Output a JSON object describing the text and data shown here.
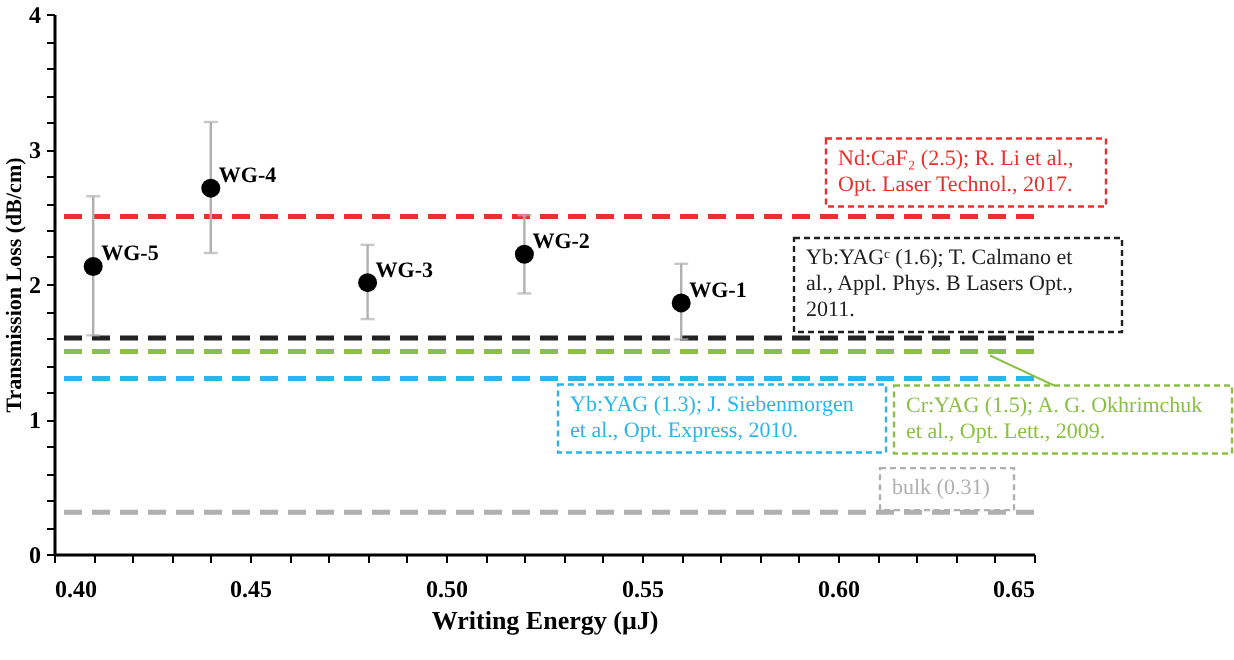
{
  "chart_data": {
    "type": "scatter",
    "xlabel": "Writing Energy (μJ)",
    "ylabel": "Transmission Loss (dB/cm)",
    "x": [
      0.41,
      0.44,
      0.48,
      0.52,
      0.56
    ],
    "series": [
      {
        "color": "#000000",
        "values": [
          2.13,
          2.71,
          2.01,
          2.22,
          1.86
        ],
        "errors": [
          [
            1.62,
            2.65
          ],
          [
            2.23,
            3.2
          ],
          [
            1.74,
            2.29
          ],
          [
            1.93,
            2.51
          ],
          [
            1.59,
            2.15
          ]
        ]
      }
    ],
    "marker": "circle",
    "xlim": [
      0.4,
      0.65
    ],
    "ylim": [
      0,
      4
    ],
    "xticks": [
      {
        "value": 0.4,
        "label": "0.40"
      },
      {
        "value": 0.41,
        "label": null
      },
      {
        "value": 0.42,
        "label": null
      },
      {
        "value": 0.43,
        "label": null
      },
      {
        "value": 0.44,
        "label": null
      },
      {
        "value": 0.45,
        "label": "0.45"
      },
      {
        "value": 0.46,
        "label": null
      },
      {
        "value": 0.47,
        "label": null
      },
      {
        "value": 0.48,
        "label": null
      },
      {
        "value": 0.49,
        "label": null
      },
      {
        "value": 0.5,
        "label": "0.50"
      },
      {
        "value": 0.51,
        "label": null
      },
      {
        "value": 0.52,
        "label": null
      },
      {
        "value": 0.53,
        "label": null
      },
      {
        "value": 0.54,
        "label": null
      },
      {
        "value": 0.55,
        "label": "0.55"
      },
      {
        "value": 0.56,
        "label": null
      },
      {
        "value": 0.57,
        "label": null
      },
      {
        "value": 0.58,
        "label": null
      },
      {
        "value": 0.59,
        "label": null
      },
      {
        "value": 0.6,
        "label": "0.60"
      },
      {
        "value": 0.61,
        "label": null
      },
      {
        "value": 0.62,
        "label": null
      },
      {
        "value": 0.63,
        "label": null
      },
      {
        "value": 0.64,
        "label": null
      },
      {
        "value": 0.65,
        "label": "0.65"
      }
    ],
    "yticks": [
      0,
      {
        "value": 0.2,
        "label": null
      },
      {
        "value": 0.4,
        "label": null
      },
      {
        "value": 0.6,
        "label": null
      },
      {
        "value": 0.8,
        "label": null
      },
      1,
      {
        "value": 1.2,
        "label": null
      },
      {
        "value": 1.4,
        "label": null
      },
      {
        "value": 1.6,
        "label": null
      },
      {
        "value": 1.8,
        "label": null
      },
      2,
      {
        "value": 2.2,
        "label": null
      },
      {
        "value": 2.4,
        "label": null
      },
      {
        "value": 2.6,
        "label": null
      },
      {
        "value": 2.8,
        "label": null
      },
      3,
      {
        "value": 3.2,
        "label": null
      },
      {
        "value": 3.4,
        "label": null
      },
      {
        "value": 3.6,
        "label": null
      },
      {
        "value": 3.8,
        "label": null
      },
      4
    ],
    "grid": false,
    "ref_lines": [
      {
        "axis": "y",
        "value": 2.5,
        "label": "Nd:CaF₂ (2.5); R. Li et al., Opt. Laser Technol., 2017.",
        "color": "#e8302c",
        "line_style": "dashed"
      },
      {
        "axis": "y",
        "value": 1.6,
        "label": "Yb:YAGᶜ (1.6); T. Calmano et al., Appl. Phys. B Lasers Opt., 2011.",
        "color": "#222222",
        "line_style": "dashed"
      },
      {
        "axis": "y",
        "value": 1.5,
        "label": "Cr:YAG (1.5); A. G. Okhrimchuk et al., Opt. Lett., 2009.",
        "color": "#8cc044",
        "line_style": "dashed"
      },
      {
        "axis": "y",
        "value": 1.3,
        "label": "Yb:YAG (1.3); J. Siebenmorgen et al., Opt. Express, 2010.",
        "color": "#2bb5e8",
        "line_style": "dashed"
      },
      {
        "axis": "y",
        "value": 0.31,
        "label": "bulk (0.31)",
        "color": "#b0b0b0",
        "line_style": "dashed"
      }
    ],
    "annotations": [
      {
        "text": "WG-5",
        "x": 0.41,
        "y": 2.13
      },
      {
        "text": "WG-4",
        "x": 0.44,
        "y": 2.71
      },
      {
        "text": "WG-3",
        "x": 0.48,
        "y": 2.01
      },
      {
        "text": "WG-2",
        "x": 0.52,
        "y": 2.22
      },
      {
        "text": "WG-1",
        "x": 0.56,
        "y": 1.86
      }
    ]
  }
}
